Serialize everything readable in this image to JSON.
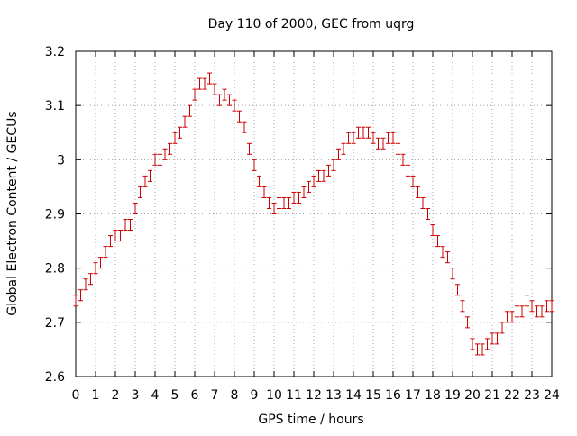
{
  "chart_data": {
    "type": "scatter",
    "title": "Day 110 of 2000, GEC from uqrg",
    "xlabel": "GPS time / hours",
    "ylabel": "Global Electron Content / GECUs",
    "xlim": [
      0,
      24
    ],
    "ylim": [
      2.6,
      3.2
    ],
    "xticks": [
      0,
      1,
      2,
      3,
      4,
      5,
      6,
      7,
      8,
      9,
      10,
      11,
      12,
      13,
      14,
      15,
      16,
      17,
      18,
      19,
      20,
      21,
      22,
      23,
      24
    ],
    "xtick_labels": [
      "0",
      "1",
      "2",
      "3",
      "4",
      "5",
      "6",
      "7",
      "8",
      "9",
      "10",
      "11",
      "12",
      "13",
      "14",
      "15",
      "16",
      "17",
      "18",
      "19",
      "20",
      "21",
      "22",
      "23",
      "24"
    ],
    "yticks": [
      2.6,
      2.7,
      2.8,
      2.9,
      3.0,
      3.1,
      3.2
    ],
    "ytick_labels": [
      "2.6",
      "2.7",
      "2.8",
      "2.9",
      "3",
      "3.1",
      "3.2"
    ],
    "grid": true,
    "marker": "errorbar",
    "color": "#cc0000",
    "error": 0.01,
    "series": [
      {
        "x": [
          0.0,
          0.25,
          0.5,
          0.75,
          1.0,
          1.25,
          1.5,
          1.75,
          2.0,
          2.25,
          2.5,
          2.75,
          3.0,
          3.25,
          3.5,
          3.75,
          4.0,
          4.25,
          4.5,
          4.75,
          5.0,
          5.25,
          5.5,
          5.75,
          6.0,
          6.25,
          6.5,
          6.75,
          7.0,
          7.25,
          7.5,
          7.75,
          8.0,
          8.25,
          8.5,
          8.75,
          9.0,
          9.25,
          9.5,
          9.75,
          10.0,
          10.25,
          10.5,
          10.75,
          11.0,
          11.25,
          11.5,
          11.75,
          12.0,
          12.25,
          12.5,
          12.75,
          13.0,
          13.25,
          13.5,
          13.75,
          14.0,
          14.25,
          14.5,
          14.75,
          15.0,
          15.25,
          15.5,
          15.75,
          16.0,
          16.25,
          16.5,
          16.75,
          17.0,
          17.25,
          17.5,
          17.75,
          18.0,
          18.25,
          18.5,
          18.75,
          19.0,
          19.25,
          19.5,
          19.75,
          20.0,
          20.25,
          20.5,
          20.75,
          21.0,
          21.25,
          21.5,
          21.75,
          22.0,
          22.25,
          22.5,
          22.75,
          23.0,
          23.25,
          23.5,
          23.75,
          24.0
        ],
        "y": [
          2.74,
          2.75,
          2.77,
          2.78,
          2.8,
          2.81,
          2.83,
          2.85,
          2.86,
          2.86,
          2.88,
          2.88,
          2.91,
          2.94,
          2.96,
          2.97,
          3.0,
          3.0,
          3.01,
          3.02,
          3.04,
          3.05,
          3.07,
          3.09,
          3.12,
          3.14,
          3.14,
          3.15,
          3.13,
          3.11,
          3.12,
          3.11,
          3.1,
          3.08,
          3.06,
          3.02,
          2.99,
          2.96,
          2.94,
          2.92,
          2.91,
          2.92,
          2.92,
          2.92,
          2.93,
          2.93,
          2.94,
          2.95,
          2.96,
          2.97,
          2.97,
          2.98,
          2.99,
          3.01,
          3.02,
          3.04,
          3.04,
          3.05,
          3.05,
          3.05,
          3.04,
          3.03,
          3.03,
          3.04,
          3.04,
          3.02,
          3.0,
          2.98,
          2.96,
          2.94,
          2.92,
          2.9,
          2.87,
          2.85,
          2.83,
          2.82,
          2.79,
          2.76,
          2.73,
          2.7,
          2.66,
          2.65,
          2.65,
          2.66,
          2.67,
          2.67,
          2.69,
          2.71,
          2.71,
          2.72,
          2.72,
          2.74,
          2.73,
          2.72,
          2.72,
          2.73,
          2.73
        ]
      }
    ]
  }
}
